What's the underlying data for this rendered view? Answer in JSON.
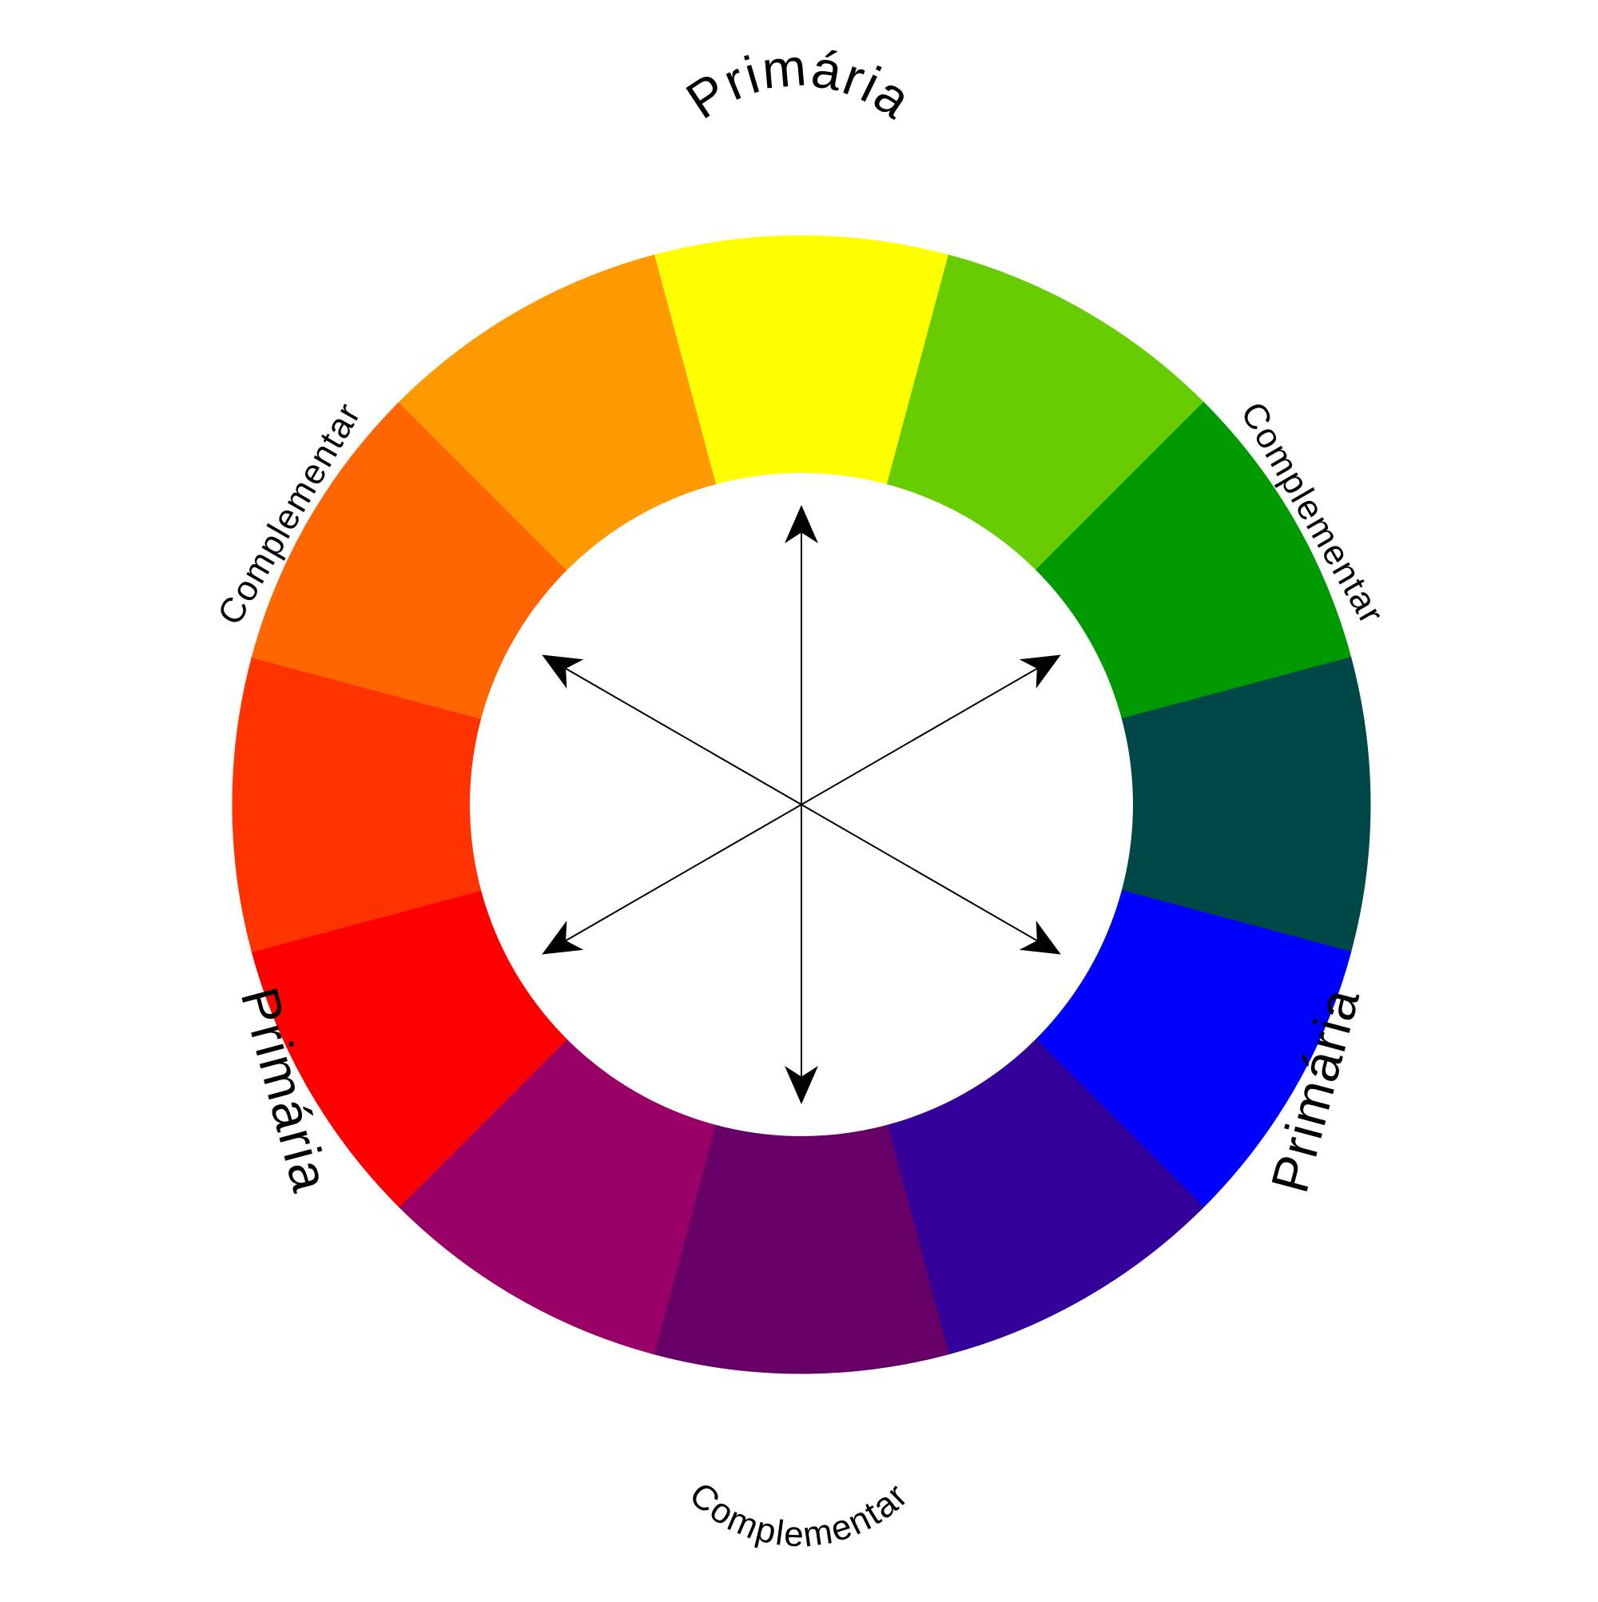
{
  "wheel": {
    "segments": [
      {
        "name": "yellow",
        "color": "#ffff00"
      },
      {
        "name": "yellow-green",
        "color": "#66cc00"
      },
      {
        "name": "green",
        "color": "#009900"
      },
      {
        "name": "teal",
        "color": "#004848"
      },
      {
        "name": "blue",
        "color": "#0000ff"
      },
      {
        "name": "blue-violet",
        "color": "#330099"
      },
      {
        "name": "violet",
        "color": "#660066"
      },
      {
        "name": "red-violet",
        "color": "#990066"
      },
      {
        "name": "red",
        "color": "#ff0000"
      },
      {
        "name": "red-orange",
        "color": "#ff3300"
      },
      {
        "name": "orange",
        "color": "#ff6600"
      },
      {
        "name": "yellow-orange",
        "color": "#ff9900"
      }
    ],
    "center_color": "#ffffff",
    "arrow_color": "#000000"
  },
  "labels": {
    "primary_top": "Primária",
    "primary_left": "Primária",
    "primary_right": "Primária",
    "complementary_top_left": "Complementar",
    "complementary_top_right": "Complementar",
    "complementary_bottom": "Complementar"
  }
}
